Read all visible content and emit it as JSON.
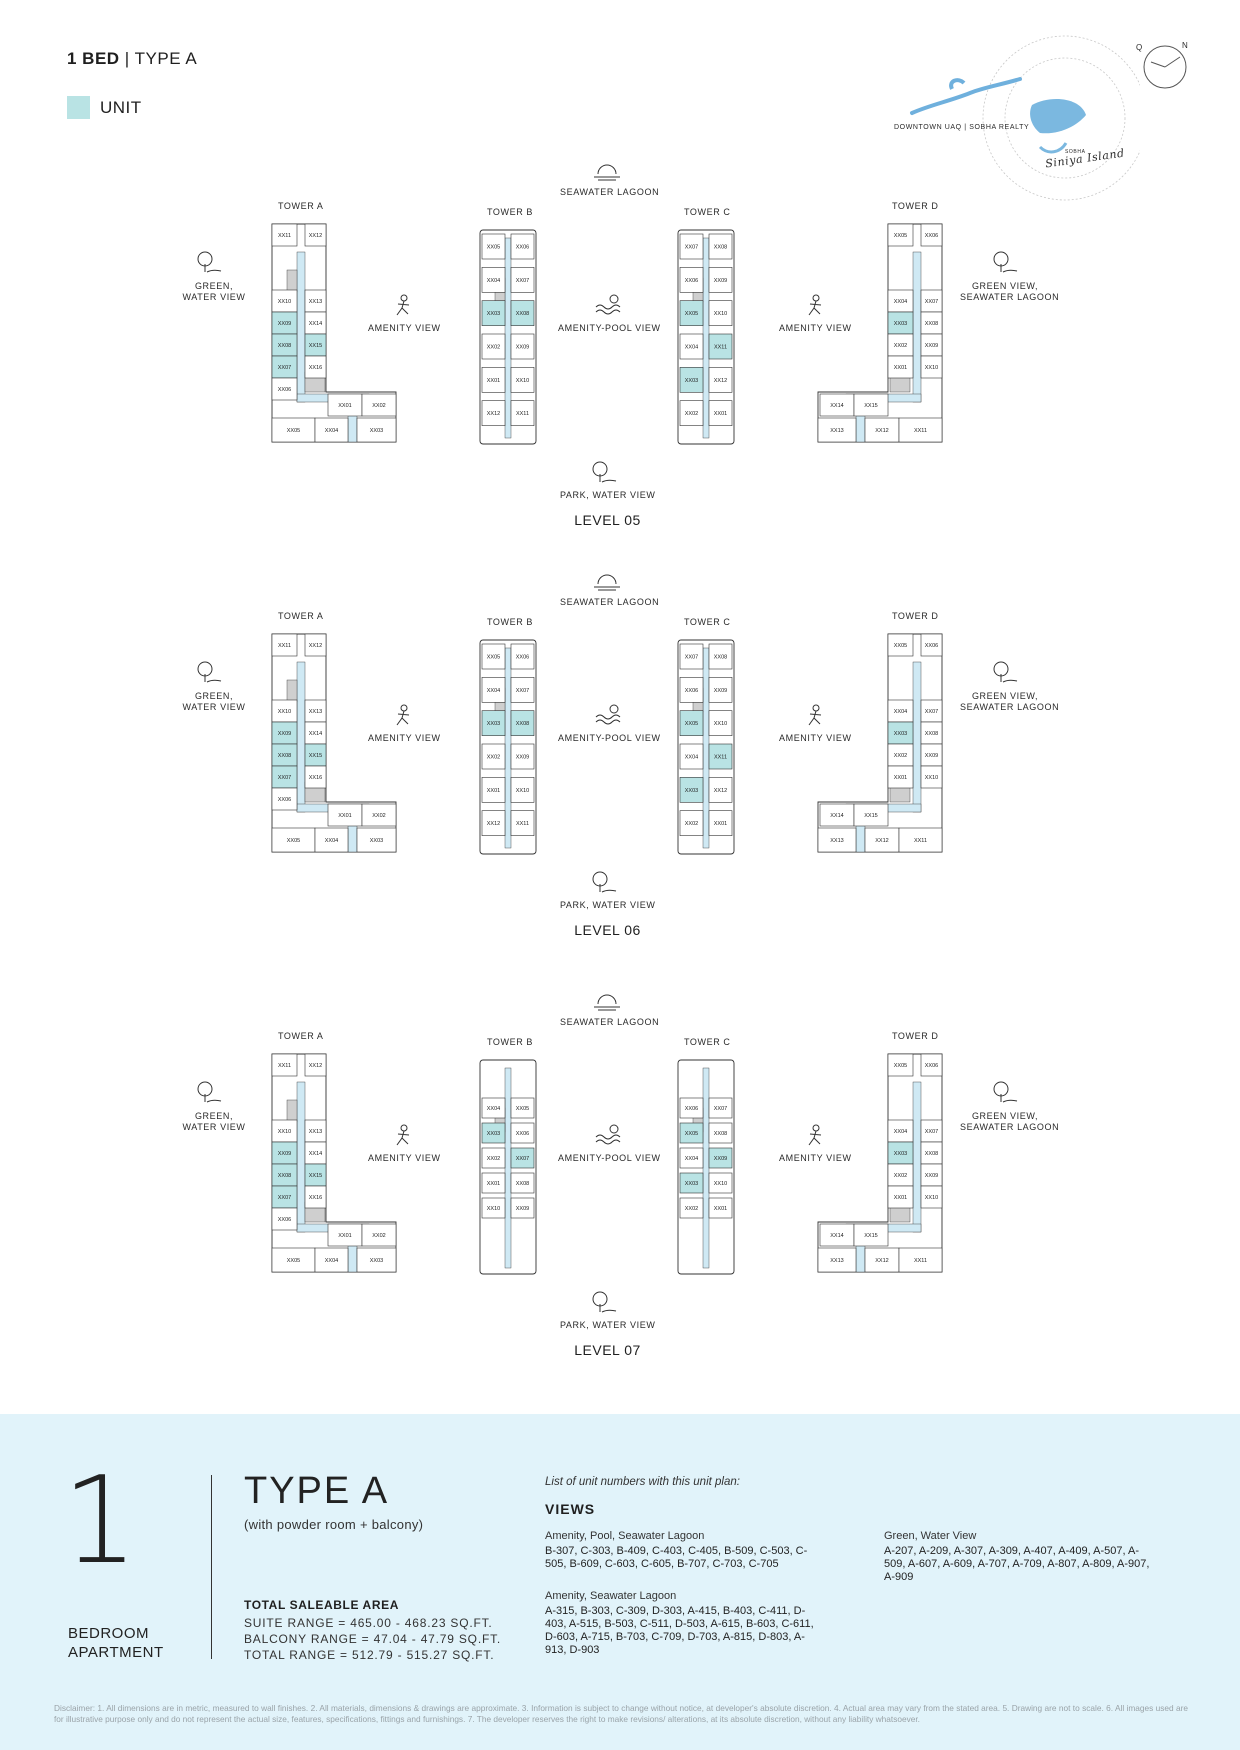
{
  "header": {
    "title_bold": "1 BED",
    "title_sep": " | ",
    "title_rest": "TYPE A",
    "legend_label": "UNIT",
    "legend_color": "#b9e3e4"
  },
  "logo": {
    "brand_line": "DOWNTOWN UAQ | SOBHA REALTY",
    "small_mark": "SOBHA",
    "script_name": "Siniya Island",
    "compass_q": "Q",
    "compass_n": "N"
  },
  "colors": {
    "unit_fill": "#b9e3e4",
    "corridor": "#cfe9f4",
    "footer_bg": "#e1f3fa",
    "core": "#cfcfcf"
  },
  "levels": [
    {
      "title": "LEVEL 05",
      "labels": {
        "top": "SEAWATER LAGOON",
        "bottom": "PARK, WATER VIEW",
        "center": "AMENITY-POOL VIEW",
        "left": [
          "GREEN,",
          "WATER VIEW"
        ],
        "right": [
          "GREEN VIEW,",
          "SEAWATER LAGOON"
        ],
        "amenity_left": "AMENITY VIEW",
        "amenity_right": "AMENITY VIEW",
        "towers": [
          "TOWER A",
          "TOWER B",
          "TOWER C",
          "TOWER D"
        ]
      },
      "units": {
        "A": [
          "XX11",
          "XX12",
          "XX10",
          "XX13",
          "XX09",
          "XX14",
          "XX08",
          "XX15",
          "XX07",
          "XX16",
          "XX06",
          "XX01",
          "XX02",
          "XX05",
          "XX04",
          "XX03"
        ],
        "B": [
          "XX05",
          "XX06",
          "XX04",
          "XX07",
          "XX03",
          "XX08",
          "XX02",
          "XX09",
          "XX01",
          "XX10",
          "XX12",
          "XX11"
        ],
        "C": [
          "XX07",
          "XX08",
          "XX06",
          "XX09",
          "XX05",
          "XX10",
          "XX04",
          "XX11",
          "XX03",
          "XX12",
          "XX02",
          "XX01"
        ],
        "D": [
          "XX05",
          "XX06",
          "XX04",
          "XX07",
          "XX03",
          "XX08",
          "XX02",
          "XX09",
          "XX01",
          "XX10",
          "XX14",
          "XX15",
          "XX13",
          "XX12",
          "XX11"
        ]
      }
    },
    {
      "title": "LEVEL 06",
      "labels": {
        "top": "SEAWATER LAGOON",
        "bottom": "PARK, WATER VIEW",
        "center": "AMENITY-POOL VIEW",
        "left": [
          "GREEN,",
          "WATER VIEW"
        ],
        "right": [
          "GREEN VIEW,",
          "SEAWATER LAGOON"
        ],
        "amenity_left": "AMENITY VIEW",
        "amenity_right": "AMENITY VIEW",
        "towers": [
          "TOWER A",
          "TOWER B",
          "TOWER C",
          "TOWER D"
        ]
      },
      "units": {
        "A": [
          "XX11",
          "XX12",
          "XX10",
          "XX13",
          "XX09",
          "XX14",
          "XX08",
          "XX15",
          "XX07",
          "XX16",
          "XX06",
          "XX01",
          "XX02",
          "XX05",
          "XX04",
          "XX03"
        ],
        "B": [
          "XX05",
          "XX06",
          "XX04",
          "XX07",
          "XX03",
          "XX08",
          "XX02",
          "XX09",
          "XX01",
          "XX10",
          "XX12",
          "XX11"
        ],
        "C": [
          "XX07",
          "XX08",
          "XX06",
          "XX09",
          "XX05",
          "XX10",
          "XX04",
          "XX11",
          "XX03",
          "XX12",
          "XX02",
          "XX01"
        ],
        "D": [
          "XX05",
          "XX06",
          "XX04",
          "XX07",
          "XX03",
          "XX08",
          "XX02",
          "XX09",
          "XX01",
          "XX10",
          "XX14",
          "XX15",
          "XX13",
          "XX12",
          "XX11"
        ]
      }
    },
    {
      "title": "LEVEL 07",
      "labels": {
        "top": "SEAWATER LAGOON",
        "bottom": "PARK, WATER VIEW",
        "center": "AMENITY-POOL VIEW",
        "left": [
          "GREEN,",
          "WATER VIEW"
        ],
        "right": [
          "GREEN VIEW,",
          "SEAWATER LAGOON"
        ],
        "amenity_left": "AMENITY VIEW",
        "amenity_right": "AMENITY VIEW",
        "towers": [
          "TOWER A",
          "TOWER B",
          "TOWER C",
          "TOWER D"
        ]
      },
      "units": {
        "A": [
          "XX11",
          "XX12",
          "XX10",
          "XX13",
          "XX09",
          "XX14",
          "XX08",
          "XX15",
          "XX07",
          "XX16",
          "XX06",
          "XX01",
          "XX02",
          "XX05",
          "XX04",
          "XX03"
        ],
        "B": [
          "XX04",
          "XX05",
          "XX03",
          "XX06",
          "XX02",
          "XX07",
          "XX01",
          "XX08",
          "XX10",
          "XX09"
        ],
        "C": [
          "XX06",
          "XX07",
          "XX05",
          "XX08",
          "XX04",
          "XX09",
          "XX03",
          "XX10",
          "XX02",
          "XX01"
        ],
        "D": [
          "XX05",
          "XX06",
          "XX04",
          "XX07",
          "XX03",
          "XX08",
          "XX02",
          "XX09",
          "XX01",
          "XX10",
          "XX14",
          "XX15",
          "XX13",
          "XX12",
          "XX11"
        ]
      }
    }
  ],
  "footer": {
    "big_number": "1",
    "bed_line1": "BEDROOM",
    "bed_line2": "APARTMENT",
    "type_title": "TYPE A",
    "type_sub": "(with powder room + balcony)",
    "tsa_heading": "TOTAL SALEABLE AREA",
    "suite_range": "SUITE RANGE = 465.00 - 468.23 SQ.FT.",
    "balcony_range": "BALCONY RANGE = 47.04 - 47.79 SQ.FT.",
    "total_range": "TOTAL RANGE = 512.79 - 515.27 SQ.FT.",
    "list_heading": "List of unit numbers with this unit plan:",
    "views_heading": "VIEWS",
    "groups": [
      {
        "title": "Amenity, Pool, Seawater Lagoon",
        "text": "B-307, C-303, B-409, C-403, C-405, B-509, C-503, C-505, B-609, C-603, C-605, B-707, C-703, C-705"
      },
      {
        "title": "Amenity, Seawater Lagoon",
        "text": "A-315, B-303, C-309, D-303, A-415, B-403, C-411, D-403, A-515, B-503, C-511, D-503, A-615, B-603, C-611, D-603, A-715, B-703, C-709, D-703, A-815, D-803, A-913, D-903"
      },
      {
        "title": "Green, Water View",
        "text": "A-207, A-209, A-307, A-309, A-407, A-409, A-507, A-509, A-607, A-609, A-707, A-709, A-807, A-809, A-907, A-909"
      }
    ],
    "disclaimer": "Disclaimer: 1. All dimensions are in metric, measured to wall finishes. 2. All materials, dimensions & drawings are approximate. 3. Information is subject to change without notice, at developer's absolute discretion. 4. Actual area may vary from the stated area. 5. Drawing are not to scale. 6. All images used are for illustrative purpose only and do not represent the actual size, features, specifications, fittings and furnishings. 7. The developer reserves the right to make revisions/ alterations, at its absolute discretion, without any liability whatsoever."
  }
}
